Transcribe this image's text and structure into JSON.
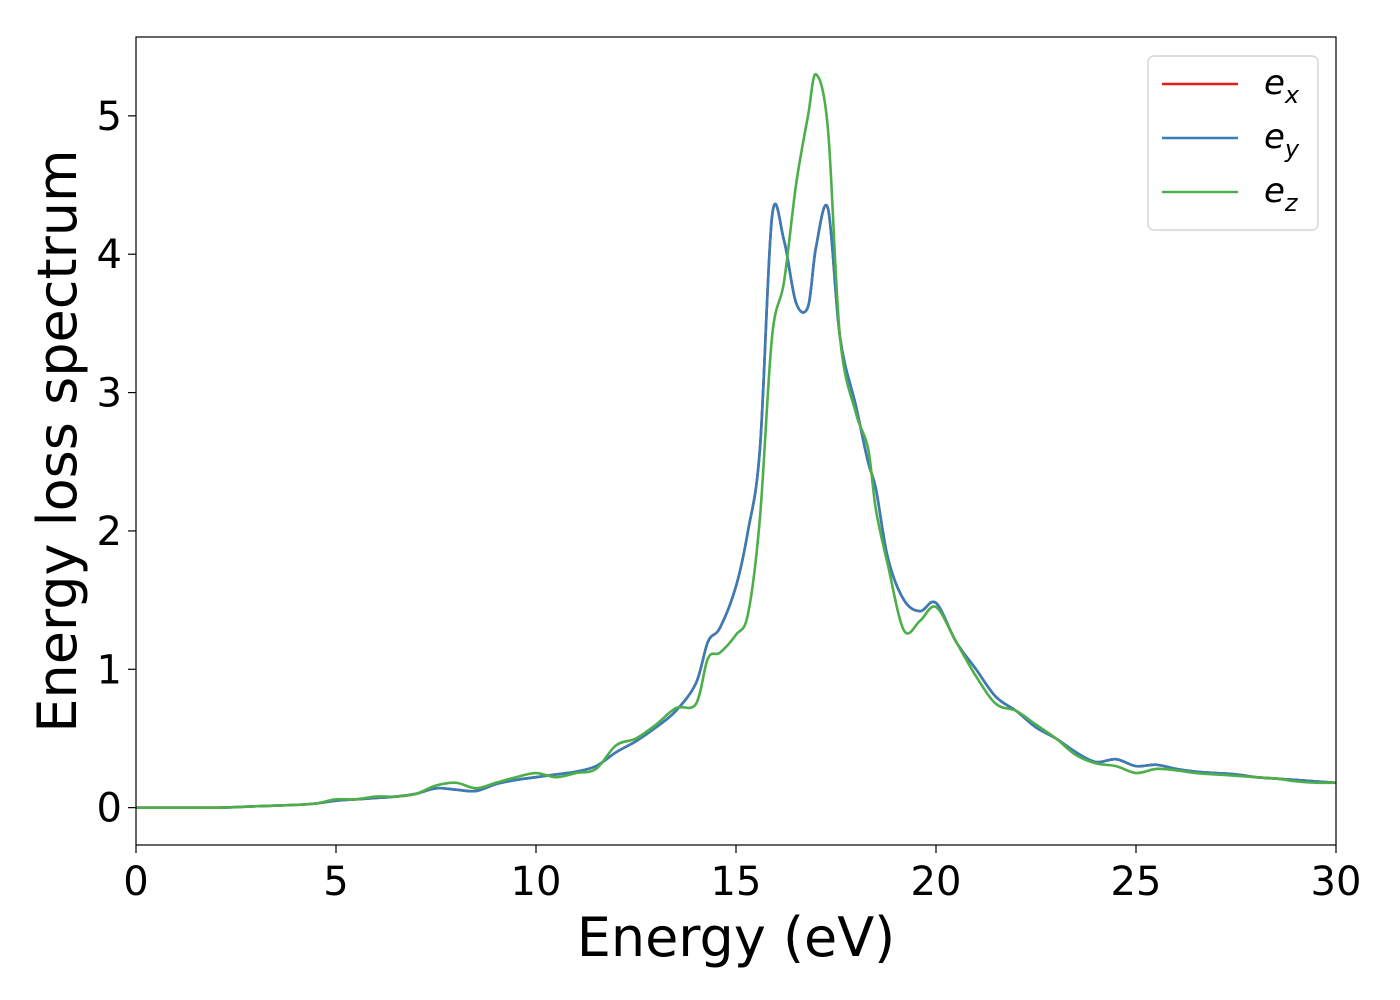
{
  "chart_data": {
    "type": "line",
    "xlabel": "Energy (eV)",
    "ylabel": "Energy loss spectrum",
    "xlim": [
      0,
      30
    ],
    "ylim": [
      -0.27,
      5.57
    ],
    "xticks": [
      0,
      5,
      10,
      15,
      20,
      25,
      30
    ],
    "yticks": [
      0,
      1,
      2,
      3,
      4,
      5
    ],
    "xtick_labels": [
      "0",
      "5",
      "10",
      "15",
      "20",
      "25",
      "30"
    ],
    "ytick_labels": [
      "0",
      "1",
      "2",
      "3",
      "4",
      "5"
    ],
    "grid": false,
    "legend_position": "top-right",
    "series": [
      {
        "name": "e_x",
        "label_base": "e",
        "label_sub": "x",
        "color": "#e41a1c",
        "x": [
          0,
          1,
          2,
          3,
          4,
          4.5,
          5,
          5.5,
          6,
          6.5,
          7,
          7.5,
          8,
          8.5,
          9,
          9.5,
          10,
          10.5,
          11,
          11.5,
          12,
          12.5,
          13,
          13.5,
          14,
          14.3,
          14.6,
          15,
          15.3,
          15.6,
          15.9,
          16.2,
          16.5,
          16.8,
          17.0,
          17.3,
          17.6,
          18.0,
          18.3,
          18.5,
          18.8,
          19.2,
          19.6,
          20.0,
          20.5,
          21.0,
          21.5,
          22.0,
          22.5,
          23,
          23.5,
          24,
          24.5,
          25,
          25.5,
          26,
          26.5,
          27,
          27.5,
          28,
          28.5,
          29,
          29.5,
          30
        ],
        "y": [
          0.0,
          0.0,
          0.0,
          0.01,
          0.02,
          0.03,
          0.05,
          0.06,
          0.07,
          0.08,
          0.1,
          0.14,
          0.13,
          0.12,
          0.17,
          0.2,
          0.22,
          0.24,
          0.26,
          0.3,
          0.4,
          0.48,
          0.58,
          0.7,
          0.9,
          1.2,
          1.3,
          1.6,
          2.0,
          2.6,
          4.27,
          4.1,
          3.65,
          3.62,
          4.05,
          4.33,
          3.4,
          2.9,
          2.5,
          2.3,
          1.8,
          1.5,
          1.42,
          1.48,
          1.2,
          1.0,
          0.8,
          0.7,
          0.58,
          0.5,
          0.4,
          0.33,
          0.35,
          0.3,
          0.31,
          0.28,
          0.26,
          0.25,
          0.24,
          0.22,
          0.21,
          0.2,
          0.19,
          0.18
        ]
      },
      {
        "name": "e_y",
        "label_base": "e",
        "label_sub": "y",
        "color": "#377eb8",
        "x": [
          0,
          1,
          2,
          3,
          4,
          4.5,
          5,
          5.5,
          6,
          6.5,
          7,
          7.5,
          8,
          8.5,
          9,
          9.5,
          10,
          10.5,
          11,
          11.5,
          12,
          12.5,
          13,
          13.5,
          14,
          14.3,
          14.6,
          15,
          15.3,
          15.6,
          15.9,
          16.2,
          16.5,
          16.8,
          17.0,
          17.3,
          17.6,
          18.0,
          18.3,
          18.5,
          18.8,
          19.2,
          19.6,
          20.0,
          20.5,
          21.0,
          21.5,
          22.0,
          22.5,
          23,
          23.5,
          24,
          24.5,
          25,
          25.5,
          26,
          26.5,
          27,
          27.5,
          28,
          28.5,
          29,
          29.5,
          30
        ],
        "y": [
          0.0,
          0.0,
          0.0,
          0.01,
          0.02,
          0.03,
          0.05,
          0.06,
          0.07,
          0.08,
          0.1,
          0.14,
          0.13,
          0.12,
          0.17,
          0.2,
          0.22,
          0.24,
          0.26,
          0.3,
          0.4,
          0.48,
          0.58,
          0.7,
          0.9,
          1.2,
          1.3,
          1.6,
          2.0,
          2.6,
          4.27,
          4.1,
          3.65,
          3.62,
          4.05,
          4.33,
          3.4,
          2.9,
          2.5,
          2.3,
          1.8,
          1.5,
          1.42,
          1.48,
          1.2,
          1.0,
          0.8,
          0.7,
          0.58,
          0.5,
          0.4,
          0.33,
          0.35,
          0.3,
          0.31,
          0.28,
          0.26,
          0.25,
          0.24,
          0.22,
          0.21,
          0.2,
          0.19,
          0.18
        ]
      },
      {
        "name": "e_z",
        "label_base": "e",
        "label_sub": "z",
        "color": "#4daf4a",
        "x": [
          0,
          1,
          2,
          3,
          4,
          4.5,
          5,
          5.5,
          6,
          6.5,
          7,
          7.5,
          8,
          8.5,
          9,
          9.5,
          10,
          10.5,
          11,
          11.5,
          12,
          12.5,
          13,
          13.5,
          14,
          14.3,
          14.6,
          15,
          15.3,
          15.6,
          15.9,
          16.2,
          16.5,
          16.8,
          17.0,
          17.3,
          17.6,
          18.0,
          18.3,
          18.5,
          18.8,
          19.2,
          19.6,
          20.0,
          20.5,
          21.0,
          21.5,
          22.0,
          22.5,
          23,
          23.5,
          24,
          24.5,
          25,
          25.5,
          26,
          26.5,
          27,
          27.5,
          28,
          28.5,
          29,
          29.5,
          30
        ],
        "y": [
          0.0,
          0.0,
          0.0,
          0.01,
          0.02,
          0.03,
          0.06,
          0.06,
          0.08,
          0.08,
          0.1,
          0.16,
          0.18,
          0.14,
          0.18,
          0.22,
          0.25,
          0.22,
          0.25,
          0.28,
          0.45,
          0.5,
          0.6,
          0.72,
          0.75,
          1.08,
          1.12,
          1.25,
          1.4,
          2.1,
          3.4,
          3.8,
          4.5,
          5.0,
          5.3,
          4.9,
          3.4,
          2.85,
          2.6,
          2.15,
          1.75,
          1.28,
          1.35,
          1.45,
          1.2,
          0.95,
          0.75,
          0.7,
          0.6,
          0.5,
          0.38,
          0.32,
          0.3,
          0.25,
          0.28,
          0.27,
          0.25,
          0.24,
          0.23,
          0.22,
          0.21,
          0.19,
          0.18,
          0.18
        ]
      }
    ]
  }
}
